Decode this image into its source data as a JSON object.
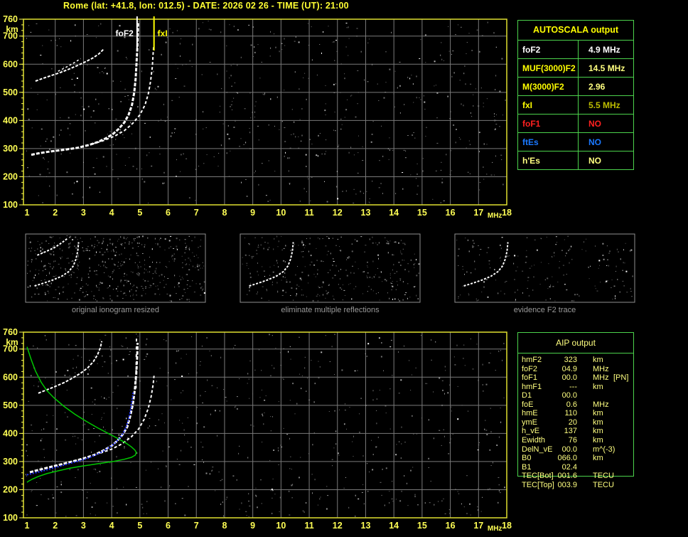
{
  "title": "Rome (lat: +41.8, lon: 012.5) - DATE: 2026 02 26 - TIME (UT): 21:00",
  "autoscala_table": {
    "header": "AUTOSCALA output",
    "rows": [
      {
        "label": "foF2",
        "value": "4.9 MHz",
        "label_color": "#ffffff",
        "value_color": "#ffffff"
      },
      {
        "label": "MUF(3000)F2",
        "value": "14.5 MHz",
        "label_color": "#ffff00",
        "value_color": "#ffff80"
      },
      {
        "label": "M(3000)F2",
        "value": "2.96",
        "label_color": "#ffff00",
        "value_color": "#ffff80"
      },
      {
        "label": "fxI",
        "value": "5.5 MHz",
        "label_color": "#ffff00",
        "value_color": "#bcbc00"
      },
      {
        "label": "foF1",
        "value": "NO",
        "label_color": "#ff2020",
        "value_color": "#ff2020"
      },
      {
        "label": "ftEs",
        "value": "NO",
        "label_color": "#1a78ff",
        "value_color": "#1a78ff"
      },
      {
        "label": "h'Es",
        "value": "NO",
        "label_color": "#ffff80",
        "value_color": "#ffff80"
      }
    ]
  },
  "thumbnails": [
    {
      "caption": "original ionogram resized"
    },
    {
      "caption": "eliminate multiple reflections"
    },
    {
      "caption": "evidence F2 trace"
    }
  ],
  "aip_table": {
    "header": "AIP output",
    "rows": [
      {
        "label": "hmF2",
        "value": "323",
        "unit": "km",
        "extra": ""
      },
      {
        "label": "foF2",
        "value": "04.9",
        "unit": "MHz",
        "extra": ""
      },
      {
        "label": "foF1",
        "value": "00.0",
        "unit": "MHz",
        "extra": "[PN]"
      },
      {
        "label": "hmF1",
        "value": "---",
        "unit": "km",
        "extra": ""
      },
      {
        "label": "D1",
        "value": "00.0",
        "unit": "",
        "extra": ""
      },
      {
        "label": "foE",
        "value": "0.6",
        "unit": "MHz",
        "extra": ""
      },
      {
        "label": "hmE",
        "value": "110",
        "unit": "km",
        "extra": ""
      },
      {
        "label": "ymE",
        "value": "20",
        "unit": "km",
        "extra": ""
      },
      {
        "label": "h_vE",
        "value": "137",
        "unit": "km",
        "extra": ""
      },
      {
        "label": "Ewidth",
        "value": "76",
        "unit": "km",
        "extra": ""
      },
      {
        "label": "DelN_vE",
        "value": "00.0",
        "unit": "m^(-3)",
        "extra": ""
      },
      {
        "label": "B0",
        "value": "066.0",
        "unit": "km",
        "extra": ""
      },
      {
        "label": "B1",
        "value": "02.4",
        "unit": "",
        "extra": ""
      },
      {
        "label": "TEC[Bot]",
        "value": "001.6",
        "unit": "TECU",
        "extra": ""
      },
      {
        "label": "TEC[Top]",
        "value": "003.9",
        "unit": "TECU",
        "extra": ""
      }
    ]
  },
  "colors": {
    "background": "#000000",
    "frame": "#e0e030",
    "axis_text": "#ffff55",
    "grid": "#7a7a7a",
    "table_border": "#4cd24c",
    "aip_text": "#ffff80",
    "caption_text": "#9a9a9a",
    "title_text": "#ffff33",
    "profile_green": "#00c800",
    "restored_blue": "#2233ff",
    "trace_white": "#ffffff"
  },
  "chart_data": [
    {
      "id": "scaled-ionogram",
      "type": "scatter",
      "xlabel": "MHz",
      "ylabel": "km",
      "xlim": [
        1,
        18
      ],
      "ylim": [
        100,
        760
      ],
      "grid": true,
      "x_ticks": [
        1,
        2,
        3,
        4,
        5,
        6,
        7,
        8,
        9,
        10,
        11,
        12,
        13,
        14,
        15,
        16,
        17,
        18
      ],
      "y_ticks": [
        760,
        700,
        600,
        500,
        400,
        300,
        200,
        100
      ],
      "markers": [
        {
          "name": "foF2",
          "x_mhz": 4.9,
          "color": "#ffffff",
          "label_side": "left"
        },
        {
          "name": "fxI",
          "x_mhz": 5.5,
          "color": "#ffff00",
          "label_side": "right"
        }
      ],
      "series": [
        {
          "name": "f2-trace-ordinary",
          "color": "#ffffff",
          "width": 3,
          "dash": "5 2",
          "points": [
            [
              1.15,
              278
            ],
            [
              1.4,
              283
            ],
            [
              1.7,
              288
            ],
            [
              2.0,
              292
            ],
            [
              2.4,
              297
            ],
            [
              2.8,
              303
            ],
            [
              3.2,
              313
            ],
            [
              3.5,
              323
            ],
            [
              3.8,
              337
            ],
            [
              4.05,
              352
            ],
            [
              4.25,
              370
            ],
            [
              4.45,
              393
            ],
            [
              4.6,
              420
            ],
            [
              4.72,
              455
            ],
            [
              4.8,
              500
            ],
            [
              4.85,
              550
            ],
            [
              4.88,
              605
            ],
            [
              4.91,
              660
            ],
            [
              4.93,
              715
            ],
            [
              4.94,
              752
            ]
          ]
        },
        {
          "name": "f2-trace-extraordinary",
          "color": "#ffffff",
          "width": 2,
          "dash": "4 3",
          "points": [
            [
              3.3,
              316
            ],
            [
              3.7,
              328
            ],
            [
              4.1,
              344
            ],
            [
              4.45,
              364
            ],
            [
              4.75,
              390
            ],
            [
              5.0,
              420
            ],
            [
              5.18,
              455
            ],
            [
              5.3,
              495
            ],
            [
              5.38,
              540
            ],
            [
              5.44,
              590
            ],
            [
              5.47,
              640
            ],
            [
              5.49,
              665
            ]
          ]
        },
        {
          "name": "multiple-reflection",
          "color": "#ffffff",
          "width": 2,
          "dash": "4 2",
          "points": [
            [
              1.3,
              540
            ],
            [
              1.6,
              551
            ],
            [
              1.9,
              561
            ],
            [
              2.2,
              571
            ],
            [
              2.5,
              583
            ],
            [
              2.8,
              596
            ],
            [
              3.1,
              610
            ],
            [
              3.35,
              623
            ],
            [
              3.55,
              637
            ],
            [
              3.7,
              652
            ]
          ]
        },
        {
          "name": "multiple-reflection-fork",
          "color": "#ffffff",
          "width": 1.5,
          "dash": "3 3",
          "points": [
            [
              2.1,
              575
            ],
            [
              2.4,
              590
            ],
            [
              2.7,
              607
            ],
            [
              2.9,
              620
            ]
          ]
        }
      ]
    },
    {
      "id": "profile-ionogram",
      "type": "scatter",
      "xlabel": "MHz",
      "ylabel": "km",
      "xlim": [
        1,
        18
      ],
      "ylim": [
        100,
        760
      ],
      "grid": true,
      "x_ticks": [
        1,
        2,
        3,
        4,
        5,
        6,
        7,
        8,
        9,
        10,
        11,
        12,
        13,
        14,
        15,
        16,
        17,
        18
      ],
      "y_ticks": [
        760,
        700,
        600,
        500,
        400,
        300,
        200,
        100
      ],
      "markers": [],
      "series": [
        {
          "name": "f2-trace-ordinary",
          "color": "#ffffff",
          "width": 3,
          "dash": "5 2",
          "points": [
            [
              1.1,
              262
            ],
            [
              1.4,
              270
            ],
            [
              1.8,
              280
            ],
            [
              2.2,
              290
            ],
            [
              2.6,
              300
            ],
            [
              3.0,
              311
            ],
            [
              3.4,
              324
            ],
            [
              3.7,
              339
            ],
            [
              4.0,
              356
            ],
            [
              4.2,
              374
            ],
            [
              4.4,
              397
            ],
            [
              4.55,
              423
            ],
            [
              4.65,
              458
            ],
            [
              4.75,
              503
            ],
            [
              4.82,
              555
            ],
            [
              4.87,
              612
            ],
            [
              4.9,
              668
            ],
            [
              4.92,
              722
            ]
          ]
        },
        {
          "name": "f2-trace-extraordinary",
          "color": "#ffffff",
          "width": 2,
          "dash": "4 3",
          "points": [
            [
              3.6,
              330
            ],
            [
              4.0,
              344
            ],
            [
              4.35,
              362
            ],
            [
              4.7,
              388
            ],
            [
              4.95,
              415
            ],
            [
              5.15,
              450
            ],
            [
              5.3,
              490
            ],
            [
              5.4,
              532
            ],
            [
              5.47,
              575
            ],
            [
              5.5,
              605
            ]
          ]
        },
        {
          "name": "multiple-reflection",
          "color": "#ffffff",
          "width": 2,
          "dash": "4 2",
          "points": [
            [
              1.4,
              543
            ],
            [
              1.7,
              555
            ],
            [
              2.0,
              567
            ],
            [
              2.3,
              580
            ],
            [
              2.6,
              596
            ],
            [
              2.9,
              614
            ],
            [
              3.15,
              633
            ],
            [
              3.35,
              655
            ],
            [
              3.5,
              680
            ],
            [
              3.6,
              705
            ],
            [
              3.65,
              728
            ]
          ]
        },
        {
          "name": "asymptote-streak",
          "color": "#ffffff",
          "width": 2,
          "dash": "4 7",
          "points": [
            [
              4.86,
              560
            ],
            [
              4.88,
              752
            ]
          ]
        },
        {
          "name": "electron-density-profile",
          "color": "#00c800",
          "width": 1.5,
          "dash": "",
          "points": [
            [
              1.0,
              708
            ],
            [
              1.15,
              662
            ],
            [
              1.3,
              622
            ],
            [
              1.5,
              582
            ],
            [
              1.7,
              553
            ],
            [
              1.95,
              527
            ],
            [
              2.3,
              497
            ],
            [
              2.7,
              468
            ],
            [
              3.1,
              443
            ],
            [
              3.5,
              420
            ],
            [
              3.9,
              399
            ],
            [
              4.2,
              383
            ],
            [
              4.5,
              366
            ],
            [
              4.7,
              352
            ],
            [
              4.82,
              341
            ],
            [
              4.87,
              333
            ],
            [
              4.84,
              323
            ],
            [
              4.7,
              315
            ],
            [
              4.45,
              308
            ],
            [
              4.1,
              301
            ],
            [
              3.7,
              295
            ],
            [
              3.3,
              289
            ],
            [
              2.9,
              283
            ],
            [
              2.5,
              276
            ],
            [
              2.1,
              267
            ],
            [
              1.7,
              257
            ],
            [
              1.4,
              247
            ],
            [
              1.2,
              238
            ],
            [
              1.05,
              230
            ],
            [
              1.0,
              226
            ]
          ]
        },
        {
          "name": "restored-trace",
          "color": "#2233ff",
          "width": 2,
          "dash": "2 2",
          "points": [
            [
              1.0,
              253
            ],
            [
              1.3,
              260
            ],
            [
              1.6,
              268
            ],
            [
              1.9,
              276
            ],
            [
              2.2,
              284
            ],
            [
              2.5,
              293
            ],
            [
              2.8,
              301
            ],
            [
              3.1,
              310
            ],
            [
              3.35,
              320
            ],
            [
              3.6,
              331
            ],
            [
              3.8,
              343
            ],
            [
              4.0,
              356
            ],
            [
              4.15,
              369
            ],
            [
              4.3,
              385
            ],
            [
              4.42,
              403
            ],
            [
              4.52,
              425
            ],
            [
              4.6,
              450
            ],
            [
              4.66,
              477
            ],
            [
              4.7,
              505
            ],
            [
              4.74,
              530
            ],
            [
              4.76,
              545
            ]
          ]
        }
      ]
    },
    {
      "id": "thumbnail-traces",
      "type": "scatter",
      "shapes": {
        "f2": [
          [
            0.05,
            0.76
          ],
          [
            0.1,
            0.72
          ],
          [
            0.15,
            0.675
          ],
          [
            0.2,
            0.62
          ],
          [
            0.24,
            0.55
          ],
          [
            0.265,
            0.47
          ],
          [
            0.28,
            0.37
          ],
          [
            0.29,
            0.25
          ],
          [
            0.295,
            0.12
          ]
        ],
        "multiple": [
          [
            0.065,
            0.31
          ],
          [
            0.11,
            0.26
          ],
          [
            0.16,
            0.2
          ],
          [
            0.2,
            0.13
          ],
          [
            0.235,
            0.06
          ]
        ]
      },
      "items": [
        {
          "traces": [
            "multiple",
            "f2"
          ]
        },
        {
          "traces": [
            "f2"
          ]
        },
        {
          "traces": [
            "f2"
          ]
        }
      ]
    }
  ]
}
